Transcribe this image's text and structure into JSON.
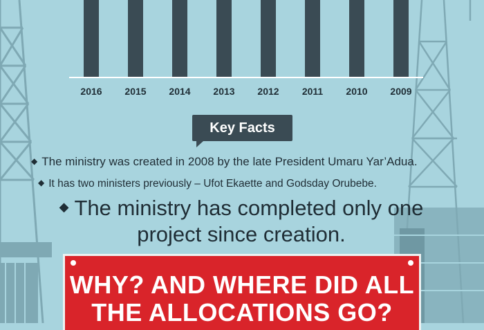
{
  "colors": {
    "background": "#a8d4de",
    "bar": "#3a4b54",
    "tower": "#7fa9b4",
    "callout": "#d9242a",
    "text": "#1f2d35"
  },
  "chart_data": {
    "type": "bar",
    "categories": [
      "2016",
      "2015",
      "2014",
      "2013",
      "2012",
      "2011",
      "2010",
      "2009"
    ],
    "values": [
      null,
      null,
      null,
      null,
      null,
      null,
      null,
      null
    ],
    "note": "bar values not visible; bars cropped at top of image",
    "title": "",
    "xlabel": "",
    "ylabel": ""
  },
  "key_facts": {
    "heading": "Key Facts",
    "fact1": "The ministry was created in 2008 by the late President Umaru Yar’Adua.",
    "fact2": "It has two ministers previously – Ufot Ekaette and Godsday Orubebe.",
    "fact3": "The ministry has completed only one project since creation."
  },
  "callout": {
    "line1": "WHY? AND WHERE DID ALL",
    "line2": "THE ALLOCATIONS GO?"
  }
}
